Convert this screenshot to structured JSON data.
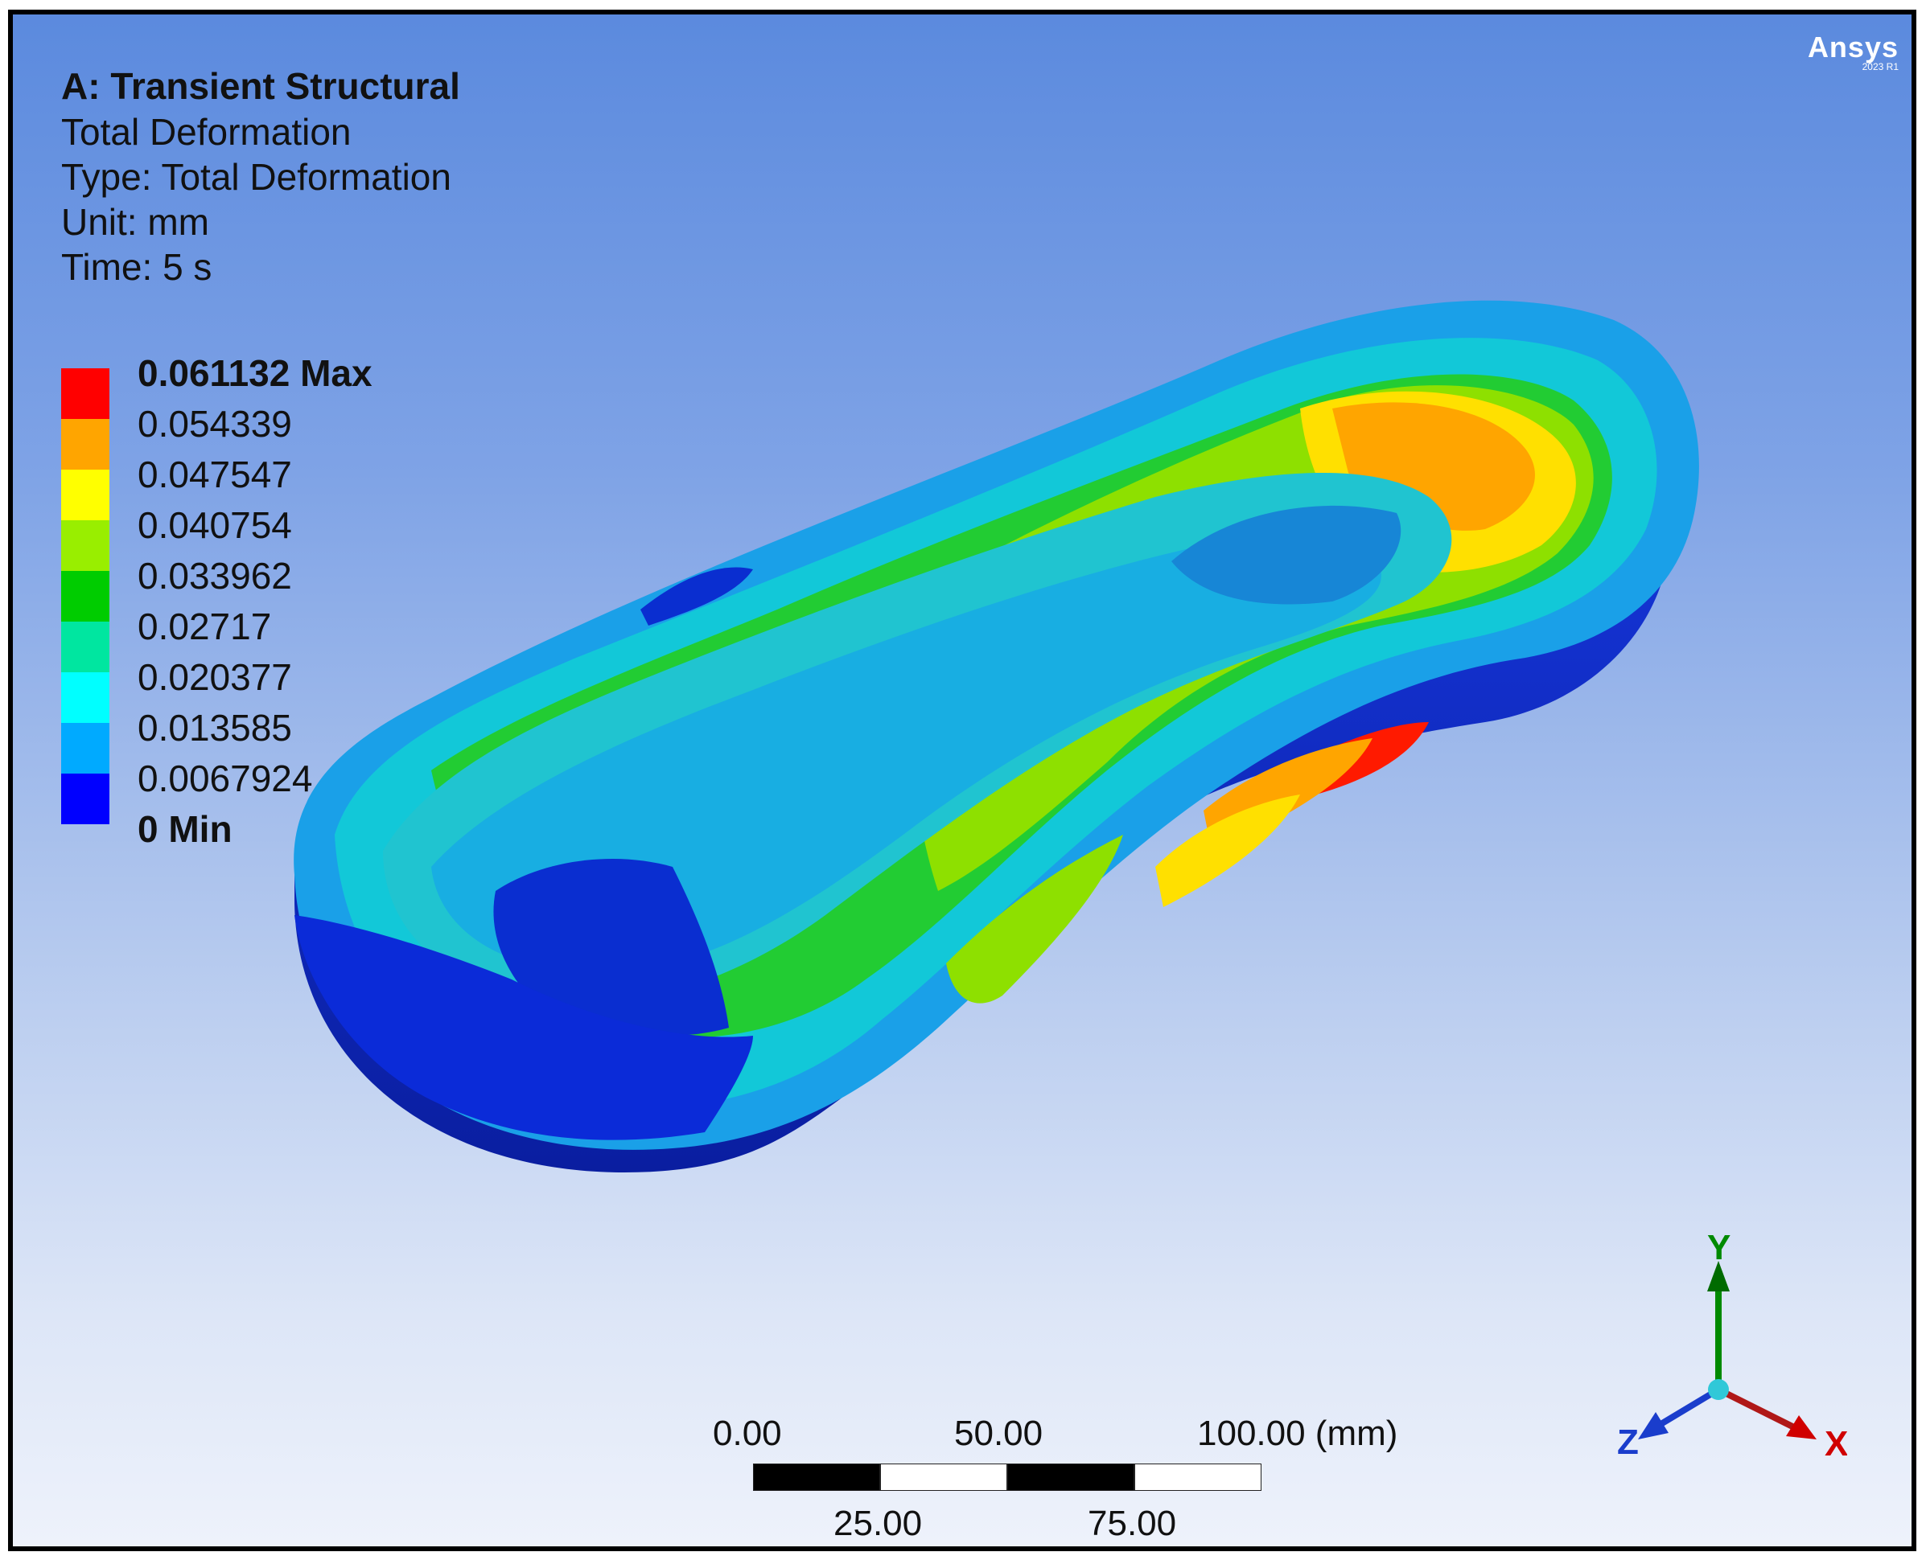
{
  "logo": {
    "brand": "Ansys",
    "version": "2023 R1"
  },
  "info": {
    "title": "A: Transient Structural",
    "lines": [
      "Total Deformation",
      "Type: Total Deformation",
      "Unit: mm",
      "Time: 5 s"
    ]
  },
  "legend": {
    "labels": [
      "0.061132 Max",
      "0.054339",
      "0.047547",
      "0.040754",
      "0.033962",
      "0.02717",
      "0.020377",
      "0.013585",
      "0.0067924",
      "0 Min"
    ],
    "colors": [
      "#ff0000",
      "#ffa500",
      "#ffff00",
      "#99ee00",
      "#00cc00",
      "#00e6a0",
      "#00ffff",
      "#00aaff",
      "#0000ff"
    ]
  },
  "scale_bar": {
    "top_ticks": [
      "0.00",
      "50.00",
      "100.00 (mm)"
    ],
    "bottom_ticks": [
      "25.00",
      "75.00"
    ]
  },
  "triad": {
    "x": "X",
    "y": "Y",
    "z": "Z",
    "x_color": "#d00000",
    "y_color": "#008a00",
    "z_color": "#1a3dcc"
  }
}
